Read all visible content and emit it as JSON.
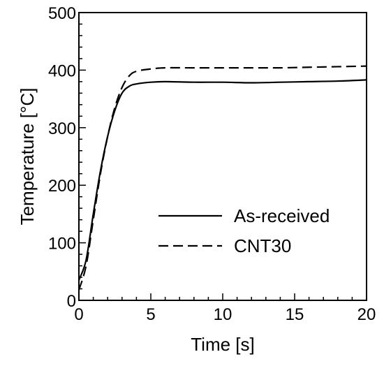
{
  "chart_data": {
    "type": "line",
    "title": "",
    "xlabel": "Time [s]",
    "ylabel": "Temperature [°C]",
    "xlim": [
      0,
      20
    ],
    "ylim": [
      0,
      500
    ],
    "xticks": [
      0,
      5,
      10,
      15,
      20
    ],
    "yticks": [
      0,
      100,
      200,
      300,
      400,
      500
    ],
    "xtick_labels": [
      "0",
      "5",
      "10",
      "15",
      "20"
    ],
    "ytick_labels": [
      "0",
      "100",
      "200",
      "300",
      "400",
      "500"
    ],
    "grid": false,
    "legend_position": "lower-right",
    "series": [
      {
        "name": "As-received",
        "style": "solid",
        "color": "#000000",
        "x": [
          0,
          0.5,
          1,
          1.5,
          2,
          2.5,
          3,
          3.5,
          4,
          5,
          6,
          8,
          10,
          12,
          14,
          16,
          18,
          20
        ],
        "y": [
          35,
          70,
          150,
          225,
          285,
          330,
          360,
          372,
          376,
          379,
          380,
          379,
          379,
          378,
          379,
          380,
          381,
          383
        ]
      },
      {
        "name": "CNT30",
        "style": "dashed",
        "color": "#000000",
        "x": [
          0,
          0.5,
          1,
          1.5,
          2,
          2.5,
          3,
          3.5,
          4,
          5,
          6,
          8,
          10,
          12,
          14,
          16,
          18,
          20
        ],
        "y": [
          18,
          60,
          140,
          220,
          285,
          335,
          370,
          390,
          398,
          402,
          404,
          404,
          404,
          404,
          404,
          405,
          406,
          407
        ]
      }
    ]
  }
}
